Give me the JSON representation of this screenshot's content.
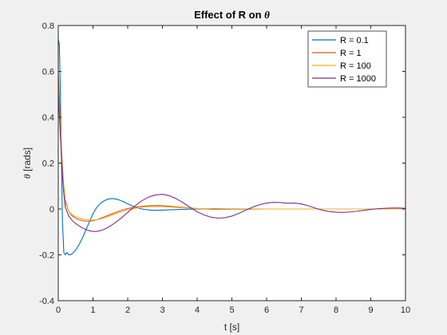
{
  "chart_data": {
    "type": "line",
    "title_prefix": "Effect of R on ",
    "title_symbol": "θ",
    "xlabel": "t [s]",
    "ylabel_symbol": "θ",
    "ylabel_suffix": " [rads]",
    "xlim": [
      0,
      10
    ],
    "ylim": [
      -0.4,
      0.8
    ],
    "xticks": [
      "0",
      "1",
      "2",
      "3",
      "4",
      "5",
      "6",
      "7",
      "8",
      "9",
      "10"
    ],
    "yticks": [
      "-0.4",
      "-0.2",
      "0",
      "0.2",
      "0.4",
      "0.6",
      "0.8"
    ],
    "grid": false,
    "legend_position": "top-right",
    "series": [
      {
        "name": "R = 0.1",
        "color": "#0072BD",
        "x": [
          0,
          0.03,
          0.06,
          0.09,
          0.12,
          0.16,
          0.2,
          0.25,
          0.3,
          0.35,
          0.4,
          0.5,
          0.6,
          0.7,
          0.8,
          0.9,
          1.0,
          1.1,
          1.2,
          1.3,
          1.4,
          1.5,
          1.6,
          1.7,
          1.8,
          1.9,
          2.0,
          2.2,
          2.4,
          2.6,
          2.8,
          3.0,
          3.5,
          4.0,
          4.5,
          5.0,
          6.0,
          7.0,
          8.0,
          9.0,
          10.0
        ],
        "y": [
          0.74,
          0.72,
          0.52,
          0.22,
          -0.05,
          -0.19,
          -0.2,
          -0.19,
          -0.2,
          -0.2,
          -0.195,
          -0.18,
          -0.155,
          -0.125,
          -0.09,
          -0.055,
          -0.02,
          0.005,
          0.022,
          0.034,
          0.041,
          0.045,
          0.045,
          0.042,
          0.037,
          0.03,
          0.022,
          0.009,
          0.0,
          -0.004,
          -0.006,
          -0.005,
          -0.002,
          0.0,
          0.001,
          0.0,
          0.0,
          0.0,
          0.0,
          0.0,
          0.0
        ]
      },
      {
        "name": "R = 1",
        "color": "#D95319",
        "x": [
          0,
          0.05,
          0.1,
          0.15,
          0.2,
          0.3,
          0.4,
          0.5,
          0.6,
          0.7,
          0.8,
          0.9,
          1.0,
          1.1,
          1.2,
          1.3,
          1.4,
          1.6,
          1.8,
          2.0,
          2.3,
          2.6,
          2.9,
          3.2,
          3.5,
          4.0,
          4.5,
          5.0,
          6.0,
          7.0,
          8.0,
          9.0,
          10.0
        ],
        "y": [
          0.6,
          0.42,
          0.24,
          0.11,
          0.04,
          -0.01,
          -0.03,
          -0.04,
          -0.047,
          -0.051,
          -0.053,
          -0.053,
          -0.051,
          -0.047,
          -0.042,
          -0.036,
          -0.03,
          -0.018,
          -0.007,
          0.002,
          0.01,
          0.014,
          0.015,
          0.012,
          0.008,
          0.002,
          -0.002,
          -0.002,
          0.0,
          0.0,
          0.0,
          0.0,
          0.0
        ]
      },
      {
        "name": "R = 100",
        "color": "#EDB120",
        "x": [
          0,
          0.05,
          0.1,
          0.15,
          0.2,
          0.3,
          0.4,
          0.5,
          0.6,
          0.7,
          0.8,
          0.9,
          1.0,
          1.1,
          1.2,
          1.3,
          1.4,
          1.6,
          1.8,
          2.0,
          2.3,
          2.6,
          3.0,
          3.5,
          4.0,
          4.5,
          5.0,
          6.0,
          7.0,
          8.0,
          9.0,
          10.0
        ],
        "y": [
          0.52,
          0.38,
          0.22,
          0.1,
          0.03,
          -0.01,
          -0.025,
          -0.033,
          -0.039,
          -0.043,
          -0.046,
          -0.048,
          -0.048,
          -0.047,
          -0.044,
          -0.04,
          -0.035,
          -0.024,
          -0.013,
          -0.004,
          0.005,
          0.01,
          0.01,
          0.006,
          0.002,
          0.0,
          -0.001,
          0.0,
          0.0,
          0.0,
          0.0,
          0.0
        ]
      },
      {
        "name": "R = 1000",
        "color": "#7E2F8E",
        "x": [
          0,
          0.05,
          0.1,
          0.15,
          0.2,
          0.3,
          0.4,
          0.5,
          0.6,
          0.7,
          0.8,
          0.9,
          1.0,
          1.1,
          1.2,
          1.3,
          1.4,
          1.5,
          1.6,
          1.7,
          1.8,
          1.9,
          2.0,
          2.2,
          2.4,
          2.6,
          2.8,
          3.0,
          3.2,
          3.4,
          3.6,
          3.8,
          4.0,
          4.2,
          4.4,
          4.6,
          4.8,
          5.0,
          5.2,
          5.4,
          5.6,
          5.8,
          6.0,
          6.2,
          6.4,
          6.6,
          6.8,
          7.0,
          7.2,
          7.4,
          7.6,
          7.8,
          8.0,
          8.2,
          8.4,
          8.6,
          8.8,
          9.0,
          9.2,
          9.4,
          9.6,
          9.8,
          10.0
        ],
        "y": [
          0.5,
          0.35,
          0.2,
          0.08,
          0.01,
          -0.03,
          -0.05,
          -0.063,
          -0.074,
          -0.083,
          -0.09,
          -0.095,
          -0.098,
          -0.098,
          -0.095,
          -0.09,
          -0.083,
          -0.074,
          -0.064,
          -0.053,
          -0.041,
          -0.028,
          -0.015,
          0.012,
          0.035,
          0.052,
          0.061,
          0.064,
          0.058,
          0.045,
          0.027,
          0.007,
          -0.012,
          -0.026,
          -0.036,
          -0.04,
          -0.038,
          -0.031,
          -0.019,
          -0.005,
          0.008,
          0.019,
          0.026,
          0.029,
          0.028,
          0.025,
          0.026,
          0.022,
          0.014,
          0.004,
          -0.005,
          -0.011,
          -0.014,
          -0.015,
          -0.013,
          -0.01,
          -0.006,
          -0.002,
          0.001,
          0.003,
          0.004,
          0.004,
          0.003
        ]
      }
    ]
  }
}
